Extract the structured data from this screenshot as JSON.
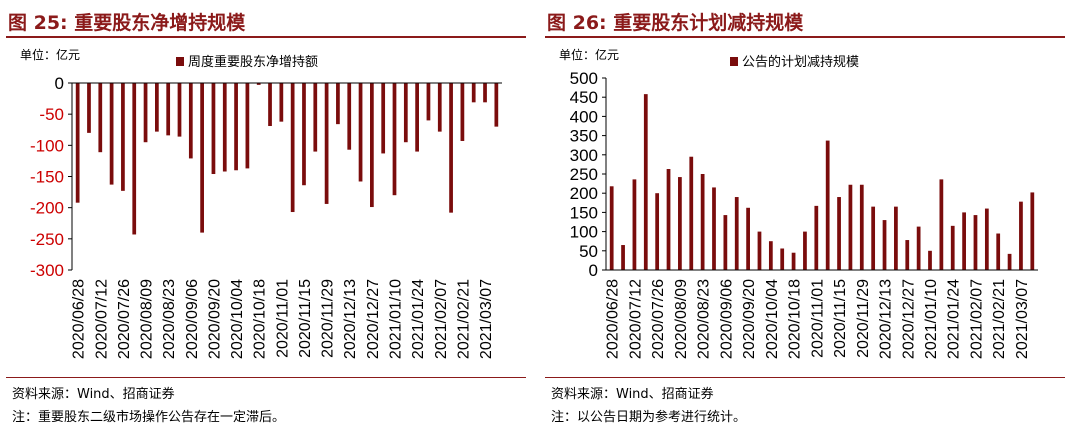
{
  "colors": {
    "bar": "#7a0c0c",
    "title": "#8b1a1a",
    "negative_tick": "#cc0000"
  },
  "chart_data": [
    {
      "type": "bar",
      "title": "图 25:  重要股东净增持规模",
      "unit_label": "单位：亿元",
      "legend": "周度重要股东净增持额",
      "legend_position": "top",
      "grid": false,
      "ylim": [
        -300,
        0
      ],
      "yticks": [
        0,
        -50,
        -100,
        -150,
        -200,
        -250,
        -300
      ],
      "xtick_labels": [
        "2020/06/28",
        "2020/07/12",
        "2020/07/26",
        "2020/08/09",
        "2020/08/23",
        "2020/09/06",
        "2020/09/20",
        "2020/10/04",
        "2020/10/18",
        "2020/11/01",
        "2020/11/15",
        "2020/11/29",
        "2020/12/13",
        "2020/12/27",
        "2021/01/10",
        "2021/01/24",
        "2021/02/07",
        "2021/02/21",
        "2021/03/07"
      ],
      "values": [
        -192,
        -80,
        -111,
        -163,
        -173,
        -243,
        -95,
        -78,
        -84,
        -86,
        -121,
        -240,
        -146,
        -142,
        -140,
        -137,
        -3,
        -69,
        -62,
        -207,
        -164,
        -110,
        -194,
        -66,
        -107,
        -158,
        -199,
        -113,
        -180,
        -95,
        -110,
        -60,
        -78,
        -208,
        -93,
        -31,
        -31,
        -70
      ],
      "source": "资料来源：Wind、招商证券",
      "note": "注：重要股东二级市场操作公告存在一定滞后。"
    },
    {
      "type": "bar",
      "title": "图 26:  重要股东计划减持规模",
      "unit_label": "单位：亿元",
      "legend": "公告的计划减持规模",
      "legend_position": "top",
      "grid": false,
      "ylim": [
        0,
        500
      ],
      "yticks": [
        500,
        450,
        400,
        350,
        300,
        250,
        200,
        150,
        100,
        50,
        0
      ],
      "xtick_labels": [
        "2020/06/28",
        "2020/07/12",
        "2020/07/26",
        "2020/08/09",
        "2020/08/23",
        "2020/09/06",
        "2020/09/20",
        "2020/10/04",
        "2020/10/18",
        "2020/11/01",
        "2020/11/15",
        "2020/11/29",
        "2020/12/13",
        "2020/12/27",
        "2021/01/10",
        "2021/01/24",
        "2021/02/07",
        "2021/02/21",
        "2021/03/07"
      ],
      "values": [
        218,
        65,
        236,
        458,
        200,
        263,
        242,
        295,
        250,
        215,
        143,
        190,
        162,
        100,
        75,
        56,
        45,
        100,
        167,
        337,
        190,
        222,
        222,
        165,
        130,
        165,
        78,
        113,
        50,
        236,
        115,
        150,
        143,
        160,
        95,
        42,
        178,
        202
      ],
      "source": "资料来源：Wind、招商证券",
      "note": "注：以公告日期为参考进行统计。"
    }
  ]
}
